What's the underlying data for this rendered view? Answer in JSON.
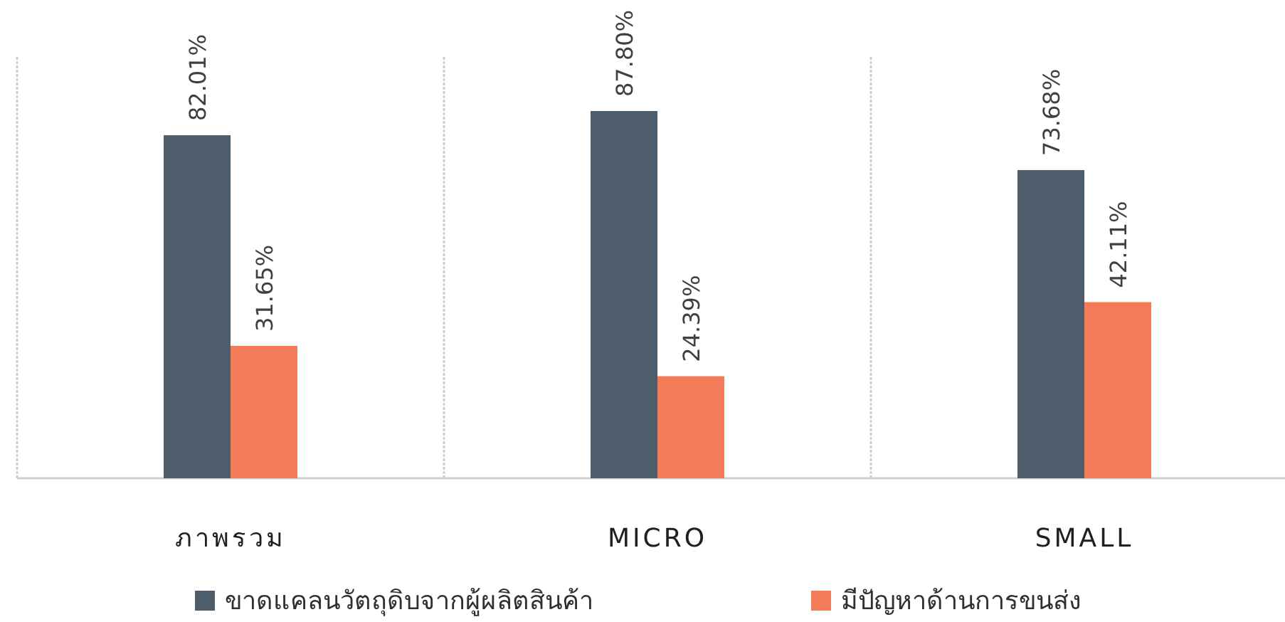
{
  "chart_data": {
    "type": "bar",
    "categories": [
      "ภาพรวม",
      "MICRO",
      "SMALL"
    ],
    "series": [
      {
        "name": "ขาดแคลนวัตถุดิบจากผู้ผลิตสินค้า",
        "color": "#4e5d6c",
        "values": [
          82.01,
          87.8,
          73.68
        ],
        "value_labels": [
          "82.01%",
          "87.80%",
          "73.68%"
        ]
      },
      {
        "name": "มีปัญหาด้านการขนส่ง",
        "color": "#f47b5a",
        "values": [
          31.65,
          24.39,
          42.11
        ],
        "value_labels": [
          "31.65%",
          "24.39%",
          "42.11%"
        ]
      }
    ],
    "grid": "x",
    "legend": "bottom"
  }
}
